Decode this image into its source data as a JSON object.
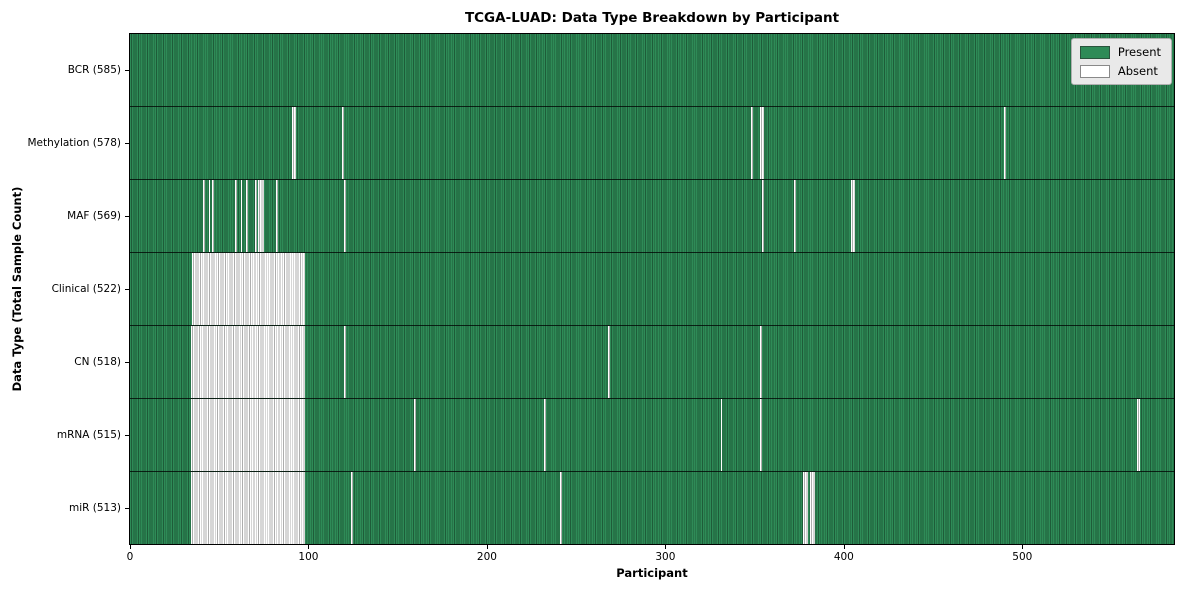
{
  "chart_data": {
    "type": "heatmap",
    "title": "TCGA-LUAD: Data Type Breakdown by Participant",
    "xlabel": "Participant",
    "ylabel": "Data Type (Total Sample Count)",
    "xlim": [
      0,
      585
    ],
    "x_ticks": [
      0,
      100,
      200,
      300,
      400,
      500
    ],
    "total_participants": 585,
    "grid": false,
    "legend_position": "upper right",
    "legend_items": [
      {
        "label": "Present",
        "color_key": "present"
      },
      {
        "label": "Absent",
        "color_key": "absent"
      }
    ],
    "colors": {
      "present": "#2e8b57",
      "present_edge": "#1e5c39",
      "absent": "#ffffff",
      "absent_edge": "#adadad",
      "row_separator": "#000000",
      "legend_background": "#e9e9e9"
    },
    "rows": [
      {
        "data_type": "BCR",
        "label": "BCR (585)",
        "present_count": 585,
        "absent_count": 0,
        "absent_ranges": []
      },
      {
        "data_type": "Methylation",
        "label": "Methylation (578)",
        "present_count": 578,
        "absent_count": 7,
        "absent_ranges": [
          [
            91,
            92
          ],
          [
            119,
            119
          ],
          [
            348,
            348
          ],
          [
            353,
            354
          ],
          [
            490,
            490
          ]
        ]
      },
      {
        "data_type": "MAF",
        "label": "MAF (569)",
        "present_count": 569,
        "absent_count": 16,
        "absent_ranges": [
          [
            41,
            41
          ],
          [
            44,
            44
          ],
          [
            46,
            46
          ],
          [
            59,
            59
          ],
          [
            62,
            62
          ],
          [
            65,
            65
          ],
          [
            70,
            70
          ],
          [
            72,
            74
          ],
          [
            82,
            82
          ],
          [
            120,
            120
          ],
          [
            354,
            354
          ],
          [
            372,
            372
          ],
          [
            404,
            405
          ]
        ]
      },
      {
        "data_type": "Clinical",
        "label": "Clinical (522)",
        "present_count": 522,
        "absent_count": 63,
        "absent_ranges": [
          [
            35,
            97
          ]
        ]
      },
      {
        "data_type": "CN",
        "label": "CN (518)",
        "present_count": 518,
        "absent_count": 67,
        "absent_ranges": [
          [
            34,
            97
          ],
          [
            120,
            120
          ],
          [
            268,
            268
          ],
          [
            353,
            353
          ]
        ]
      },
      {
        "data_type": "mRNA",
        "label": "mRNA (515)",
        "present_count": 515,
        "absent_count": 70,
        "absent_ranges": [
          [
            34,
            97
          ],
          [
            159,
            159
          ],
          [
            232,
            232
          ],
          [
            331,
            331
          ],
          [
            353,
            353
          ],
          [
            564,
            565
          ]
        ]
      },
      {
        "data_type": "miR",
        "label": "miR (513)",
        "present_count": 513,
        "absent_count": 72,
        "absent_ranges": [
          [
            34,
            97
          ],
          [
            124,
            124
          ],
          [
            241,
            241
          ],
          [
            377,
            379
          ],
          [
            381,
            383
          ]
        ]
      }
    ]
  }
}
